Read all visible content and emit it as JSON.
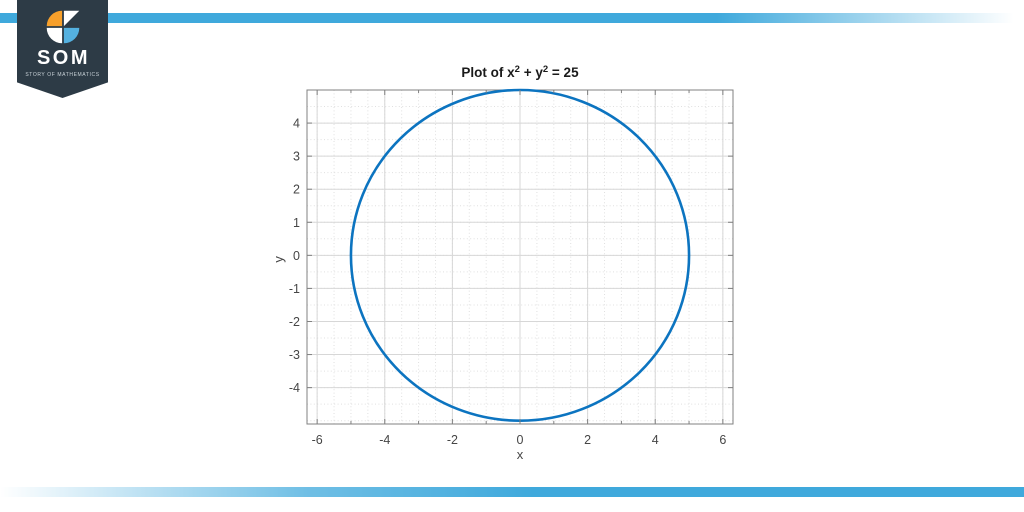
{
  "branding": {
    "logo_text": "SOM",
    "logo_subtext": "STORY OF MATHEMATICS",
    "banner_color": "#2d3b46",
    "accent_bar_color": "#3fa9dc",
    "icon_colors": {
      "orange": "#f7a02b",
      "white": "#ffffff",
      "blue": "#54b1e0"
    }
  },
  "chart_data": {
    "type": "line",
    "title_parts": {
      "t1": "Plot of x",
      "sup1": "2",
      "t2": " + y",
      "sup2": "2",
      "t3": " = 25"
    },
    "title_plain": "Plot of x^2 + y^2 = 25",
    "equation": "x^2 + y^2 = 25",
    "shape": {
      "kind": "circle",
      "center_x": 0,
      "center_y": 0,
      "radius": 5
    },
    "xlabel": "x",
    "ylabel": "y",
    "xlim": [
      -6.3,
      6.3
    ],
    "ylim": [
      -5.1,
      5.0
    ],
    "x_tick_labels": [
      -6,
      -4,
      -2,
      0,
      2,
      4,
      6
    ],
    "x_minor_ticks": [
      -5,
      -3,
      -1,
      1,
      3,
      5
    ],
    "y_tick_labels": [
      -4,
      -3,
      -2,
      -1,
      0,
      1,
      2,
      3,
      4
    ],
    "minor_grid_step": 0.5,
    "grid": true,
    "minor_grid": true,
    "line_color": "#0c74c0",
    "axis_color": "#808080",
    "tick_label_color": "#464646",
    "title_color": "#1a1a1a",
    "major_grid_color": "#d7d7d7",
    "minor_grid_color": "#e0e0e0"
  }
}
